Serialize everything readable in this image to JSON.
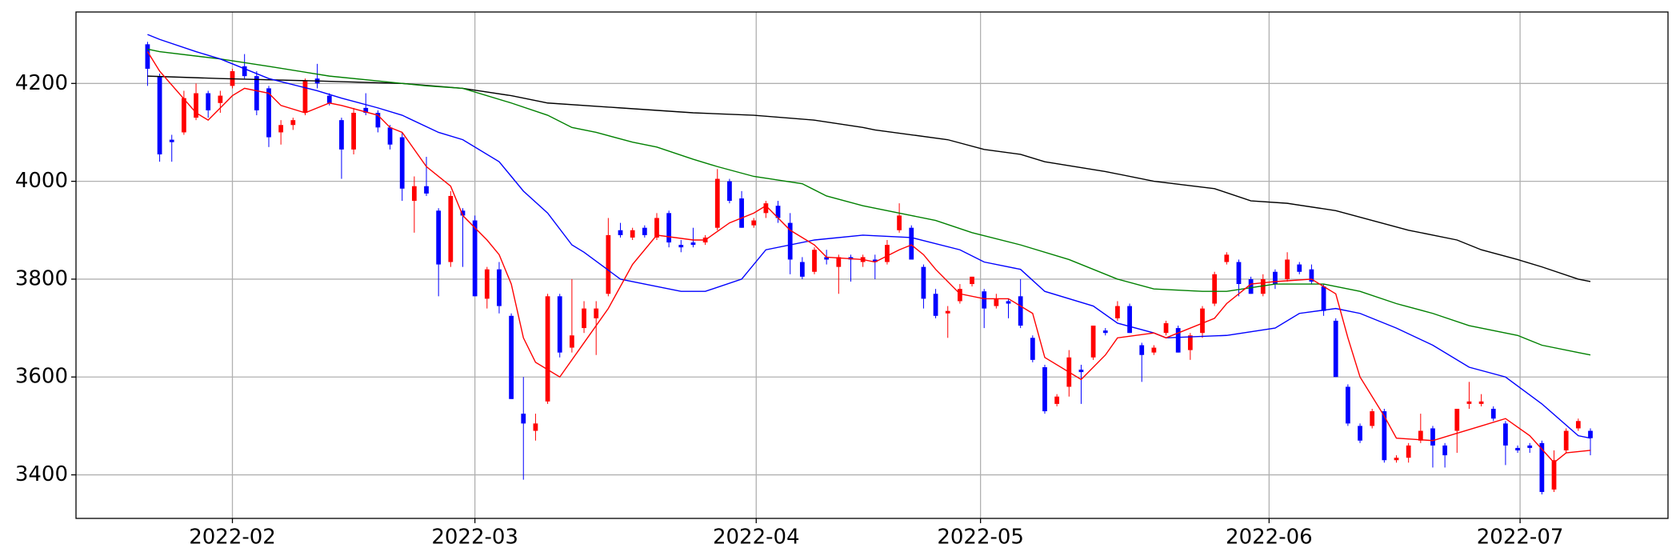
{
  "chart_data": {
    "type": "candlestick",
    "up_color": "#ff0000",
    "down_color": "#0000ff",
    "grid": true,
    "xlim": [
      -5.9,
      125.4
    ],
    "xticks": [
      {
        "value": 7,
        "label": "2022-02"
      },
      {
        "value": 27,
        "label": "2022-03"
      },
      {
        "value": 50.2,
        "label": "2022-04"
      },
      {
        "value": 68.7,
        "label": "2022-05"
      },
      {
        "value": 92.5,
        "label": "2022-06"
      },
      {
        "value": 113.2,
        "label": "2022-07"
      }
    ],
    "ylim": [
      3311,
      4346
    ],
    "yticks": [
      3400,
      3600,
      3800,
      4000,
      4200
    ],
    "candles": {
      "open": [
        4280,
        4215,
        4085,
        4100,
        4130,
        4180,
        4160,
        4195,
        4235,
        4215,
        4190,
        4100,
        4115,
        4140,
        4210,
        4175,
        4125,
        4065,
        4150,
        4140,
        4110,
        4090,
        3960,
        3990,
        3940,
        3835,
        3940,
        3920,
        3760,
        3820,
        3725,
        3525,
        3490,
        3550,
        3765,
        3660,
        3700,
        3720,
        3770,
        3900,
        3885,
        3905,
        3885,
        3935,
        3870,
        3875,
        3875,
        3905,
        4000,
        3965,
        3910,
        3935,
        3950,
        3915,
        3835,
        3815,
        3845,
        3825,
        3845,
        3835,
        3840,
        3835,
        3900,
        3905,
        3825,
        3770,
        3730,
        3755,
        3790,
        3775,
        3745,
        3755,
        3765,
        3680,
        3620,
        3545,
        3580,
        3615,
        3640,
        3695,
        3720,
        3745,
        3665,
        3650,
        3690,
        3700,
        3655,
        3690,
        3750,
        3835,
        3835,
        3800,
        3770,
        3815,
        3800,
        3830,
        3820,
        3785,
        3715,
        3580,
        3500,
        3500,
        3530,
        3430,
        3435,
        3470,
        3495,
        3460,
        3490,
        3545,
        3545,
        3535,
        3505,
        3455,
        3460,
        3465,
        3370,
        3450,
        3495,
        3490
      ],
      "high": [
        4285,
        4220,
        4095,
        4185,
        4200,
        4185,
        4185,
        4230,
        4260,
        4225,
        4195,
        4125,
        4130,
        4210,
        4240,
        4180,
        4130,
        4150,
        4180,
        4145,
        4115,
        4100,
        4010,
        4050,
        3945,
        3980,
        3945,
        3930,
        3825,
        3835,
        3730,
        3600,
        3525,
        3770,
        3770,
        3800,
        3755,
        3755,
        3925,
        3915,
        3905,
        3910,
        3935,
        3940,
        3880,
        3905,
        3890,
        4025,
        4005,
        3980,
        3925,
        3960,
        3960,
        3935,
        3845,
        3865,
        3860,
        3850,
        3850,
        3850,
        3850,
        3880,
        3955,
        3910,
        3830,
        3780,
        3745,
        3790,
        3805,
        3780,
        3770,
        3760,
        3800,
        3685,
        3625,
        3565,
        3655,
        3625,
        3705,
        3700,
        3755,
        3750,
        3670,
        3665,
        3715,
        3705,
        3690,
        3745,
        3815,
        3855,
        3840,
        3805,
        3810,
        3820,
        3855,
        3835,
        3830,
        3790,
        3720,
        3585,
        3505,
        3535,
        3535,
        3440,
        3465,
        3525,
        3500,
        3465,
        3535,
        3590,
        3565,
        3540,
        3510,
        3460,
        3465,
        3470,
        3450,
        3495,
        3515,
        3495
      ],
      "low": [
        4195,
        4040,
        4040,
        4095,
        4125,
        4130,
        4140,
        4190,
        4210,
        4135,
        4070,
        4075,
        4105,
        4135,
        4190,
        4155,
        4005,
        4055,
        4135,
        4100,
        4065,
        3960,
        3895,
        3970,
        3765,
        3825,
        3825,
        3765,
        3740,
        3730,
        3555,
        3390,
        3470,
        3545,
        3640,
        3650,
        3690,
        3645,
        3765,
        3885,
        3880,
        3885,
        3880,
        3865,
        3855,
        3865,
        3870,
        3900,
        3955,
        3905,
        3905,
        3925,
        3915,
        3810,
        3800,
        3810,
        3830,
        3770,
        3795,
        3825,
        3800,
        3830,
        3895,
        3840,
        3740,
        3720,
        3680,
        3750,
        3785,
        3700,
        3740,
        3720,
        3700,
        3630,
        3525,
        3540,
        3560,
        3545,
        3635,
        3685,
        3715,
        3690,
        3590,
        3645,
        3685,
        3650,
        3635,
        3680,
        3745,
        3830,
        3765,
        3770,
        3765,
        3780,
        3795,
        3810,
        3790,
        3725,
        3600,
        3500,
        3465,
        3495,
        3425,
        3425,
        3425,
        3465,
        3415,
        3415,
        3445,
        3535,
        3540,
        3510,
        3420,
        3445,
        3445,
        3360,
        3365,
        3445,
        3490,
        3440
      ],
      "close": [
        4230,
        4055,
        4080,
        4170,
        4180,
        4145,
        4175,
        4225,
        4215,
        4145,
        4090,
        4115,
        4125,
        4205,
        4200,
        4160,
        4065,
        4140,
        4140,
        4110,
        4075,
        3985,
        3990,
        3975,
        3830,
        3970,
        3930,
        3765,
        3820,
        3745,
        3555,
        3505,
        3505,
        3765,
        3650,
        3685,
        3740,
        3740,
        3890,
        3890,
        3900,
        3890,
        3925,
        3875,
        3865,
        3870,
        3885,
        4005,
        3960,
        3905,
        3920,
        3955,
        3925,
        3840,
        3805,
        3860,
        3840,
        3845,
        3840,
        3845,
        3835,
        3870,
        3930,
        3840,
        3760,
        3725,
        3735,
        3780,
        3805,
        3740,
        3760,
        3750,
        3705,
        3635,
        3530,
        3560,
        3640,
        3610,
        3705,
        3690,
        3745,
        3690,
        3645,
        3660,
        3710,
        3650,
        3685,
        3740,
        3810,
        3850,
        3790,
        3770,
        3800,
        3790,
        3840,
        3815,
        3795,
        3735,
        3600,
        3505,
        3470,
        3530,
        3430,
        3435,
        3460,
        3490,
        3460,
        3440,
        3535,
        3550,
        3550,
        3515,
        3460,
        3450,
        3455,
        3365,
        3430,
        3490,
        3510,
        3475
      ]
    },
    "lines": [
      {
        "color": "#000000",
        "x": [
          0,
          6,
          14,
          21,
          26,
          30,
          33,
          39,
          45,
          50,
          55,
          59,
          60,
          63,
          66,
          69,
          72,
          74,
          79,
          83,
          88,
          91,
          94,
          98,
          101,
          104,
          108,
          110,
          113,
          115,
          118,
          119
        ],
        "values": [
          4215,
          4210,
          4205,
          4200,
          4190,
          4175,
          4160,
          4150,
          4140,
          4135,
          4125,
          4110,
          4105,
          4095,
          4085,
          4065,
          4055,
          4040,
          4020,
          4000,
          3985,
          3960,
          3955,
          3940,
          3920,
          3900,
          3880,
          3860,
          3840,
          3825,
          3800,
          3795
        ]
      },
      {
        "color": "#008000",
        "x": [
          0,
          1,
          6,
          10,
          15,
          19,
          23,
          26,
          30,
          33,
          35,
          37,
          40,
          42,
          45,
          47,
          50,
          54,
          56,
          59,
          63,
          65,
          68,
          72,
          76,
          80,
          83,
          87,
          89,
          93,
          97,
          100,
          103,
          106,
          109,
          113,
          115,
          118,
          119
        ],
        "values": [
          4270,
          4265,
          4250,
          4235,
          4215,
          4205,
          4195,
          4190,
          4160,
          4135,
          4110,
          4100,
          4080,
          4070,
          4045,
          4030,
          4010,
          3995,
          3970,
          3950,
          3930,
          3920,
          3895,
          3870,
          3840,
          3800,
          3780,
          3775,
          3775,
          3790,
          3790,
          3775,
          3750,
          3730,
          3705,
          3685,
          3665,
          3650,
          3645
        ]
      },
      {
        "color": "#0000ff",
        "x": [
          0,
          1,
          4,
          6,
          10,
          14,
          16,
          19,
          21,
          24,
          26,
          29,
          30,
          31,
          33,
          35,
          36,
          39,
          41,
          44,
          46,
          49,
          51,
          55,
          59,
          63,
          67,
          69,
          72,
          74,
          78,
          80,
          83,
          84,
          89,
          93,
          95,
          98,
          100,
          103,
          106,
          109,
          112,
          115,
          118,
          119
        ],
        "values": [
          4300,
          4290,
          4265,
          4250,
          4210,
          4185,
          4170,
          4150,
          4135,
          4100,
          4085,
          4040,
          4010,
          3980,
          3935,
          3870,
          3855,
          3800,
          3790,
          3775,
          3775,
          3800,
          3860,
          3880,
          3890,
          3885,
          3860,
          3835,
          3820,
          3775,
          3745,
          3710,
          3690,
          3680,
          3685,
          3700,
          3730,
          3740,
          3730,
          3700,
          3665,
          3620,
          3600,
          3545,
          3480,
          3475
        ]
      },
      {
        "color": "#ff0000",
        "x": [
          0,
          1,
          4,
          5,
          6,
          7,
          8,
          10,
          11,
          13,
          15,
          16,
          19,
          20,
          21,
          23,
          25,
          26,
          28,
          29,
          30,
          31,
          32,
          34,
          36,
          38,
          40,
          42,
          45,
          46,
          48,
          50,
          51,
          53,
          55,
          56,
          59,
          60,
          62,
          63,
          64,
          65,
          67,
          69,
          71,
          73,
          74,
          77,
          79,
          80,
          83,
          84,
          88,
          89,
          91,
          93,
          96,
          98,
          99,
          100,
          102,
          103,
          106,
          108,
          110,
          112,
          114,
          116,
          117,
          119
        ],
        "values": [
          4265,
          4225,
          4140,
          4125,
          4150,
          4175,
          4190,
          4180,
          4155,
          4140,
          4160,
          4155,
          4135,
          4110,
          4100,
          4030,
          3990,
          3930,
          3880,
          3850,
          3790,
          3680,
          3630,
          3600,
          3670,
          3740,
          3830,
          3890,
          3880,
          3880,
          3915,
          3935,
          3950,
          3900,
          3870,
          3845,
          3840,
          3835,
          3860,
          3870,
          3850,
          3820,
          3770,
          3760,
          3760,
          3730,
          3640,
          3595,
          3645,
          3680,
          3690,
          3680,
          3720,
          3750,
          3790,
          3795,
          3800,
          3770,
          3680,
          3600,
          3520,
          3475,
          3470,
          3485,
          3500,
          3515,
          3480,
          3425,
          3445,
          3450
        ]
      }
    ]
  }
}
